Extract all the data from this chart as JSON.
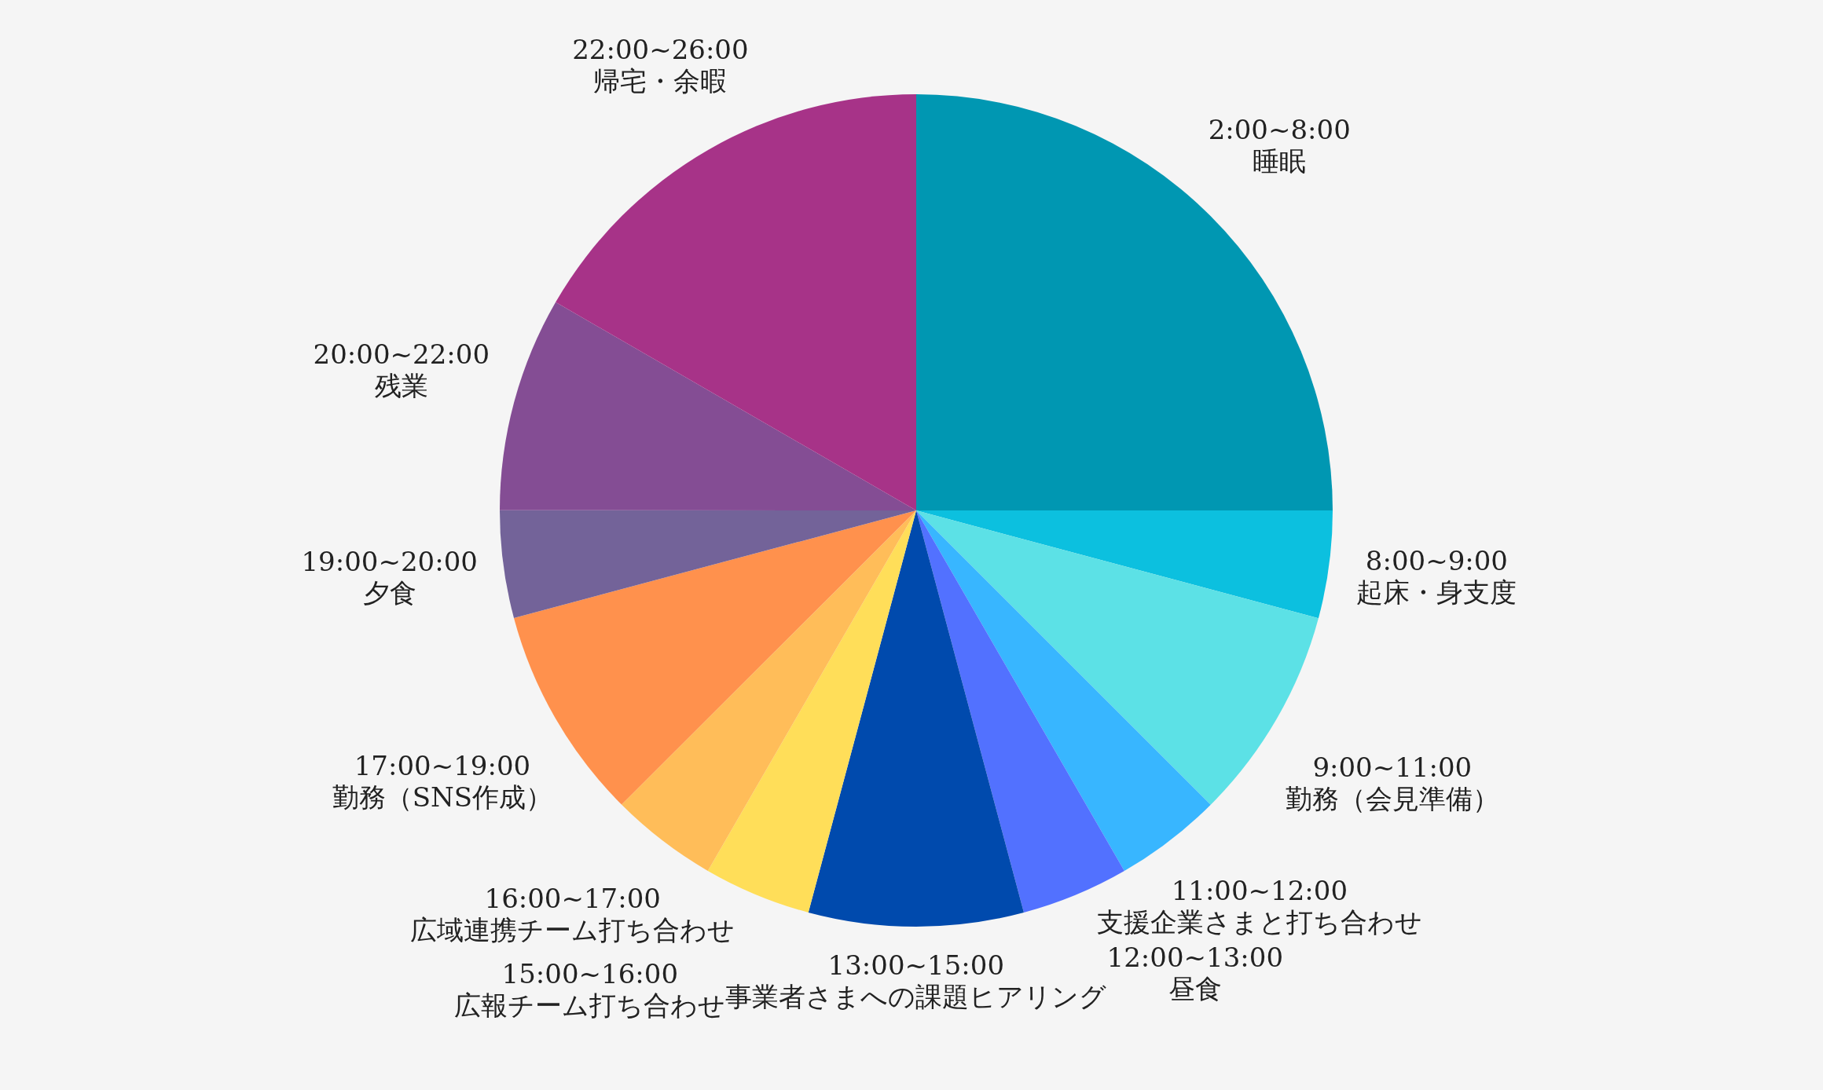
{
  "chart_data": {
    "type": "pie",
    "categories": [
      "2:00~8:00\n睡眠",
      "8:00~9:00\n起床・身支度",
      "9:00~11:00\n勤務（会見準備）",
      "11:00~12:00\n支援企業さまと打ち合わせ",
      "12:00~13:00\n昼食",
      "13:00~15:00\n事業者さまへの課題ヒアリング",
      "15:00~16:00\n広報チーム打ち合わせ",
      "16:00~17:00\n広域連携チーム打ち合わせ",
      "17:00~19:00\n勤務（SNS作成）",
      "19:00~20:00\n夕食",
      "20:00~22:00\n残業",
      "22:00~26:00\n帰宅・余暇"
    ],
    "values": [
      25,
      4.17,
      8.33,
      4.17,
      4.17,
      8.33,
      4.17,
      4.17,
      8.33,
      4.17,
      8.33,
      16.66
    ],
    "colors": [
      "#0097b2",
      "#0cc0df",
      "#5ce1e6",
      "#38b6ff",
      "#5271ff",
      "#004aad",
      "#ffde59",
      "#ffbd59",
      "#ff914d",
      "#736399",
      "#844d94",
      "#a73388"
    ]
  }
}
